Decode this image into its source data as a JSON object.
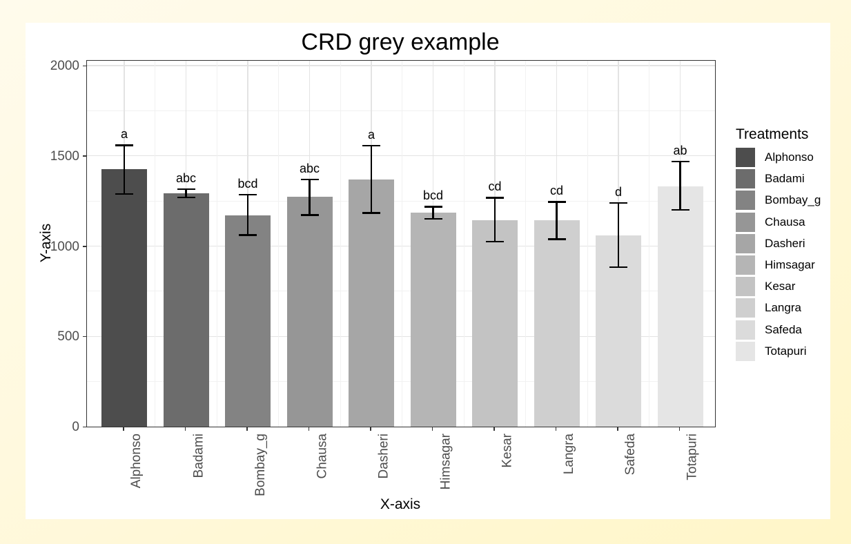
{
  "colors": {
    "page_bg_start": "#FFFBEC",
    "page_bg_end": "#FFF6C8",
    "chart_bg": "#FFFFFF",
    "panel_border": "#333333",
    "grid_major": "#E3E3E3",
    "grid_minor": "#F1F1F1",
    "tick_label": "#4D4D4D",
    "text": "#000000",
    "error_bar": "#000000"
  },
  "chart_data": {
    "type": "bar",
    "title": "CRD grey example",
    "xlabel": "X-axis",
    "ylabel": "Y-axis",
    "ylim": [
      0,
      2000
    ],
    "yticks": [
      0,
      500,
      1000,
      1500,
      2000
    ],
    "yticks_minor": [
      250,
      750,
      1250,
      1750
    ],
    "grid": "major and minor light-grey gridlines on white panel",
    "legend_title": "Treatments",
    "legend_position": "right",
    "categories": [
      "Alphonso",
      "Badami",
      "Bombay_g",
      "Chausa",
      "Dasheri",
      "Himsagar",
      "Kesar",
      "Langra",
      "Safeda",
      "Totapuri"
    ],
    "values": [
      1425,
      1291,
      1172,
      1272,
      1368,
      1186,
      1144,
      1142,
      1061,
      1332
    ],
    "error_low": [
      1288,
      1268,
      1061,
      1172,
      1183,
      1151,
      1023,
      1038,
      882,
      1199
    ],
    "error_high": [
      1560,
      1317,
      1285,
      1370,
      1558,
      1218,
      1268,
      1246,
      1240,
      1470
    ],
    "sig_letters": [
      "a",
      "abc",
      "bcd",
      "abc",
      "a",
      "bcd",
      "cd",
      "cd",
      "d",
      "ab"
    ],
    "bar_colors": [
      "#4D4D4D",
      "#6C6C6C",
      "#838383",
      "#969696",
      "#A6A6A6",
      "#B5B5B5",
      "#C3C3C3",
      "#CFCFCF",
      "#DBDBDB",
      "#E5E5E5"
    ]
  }
}
